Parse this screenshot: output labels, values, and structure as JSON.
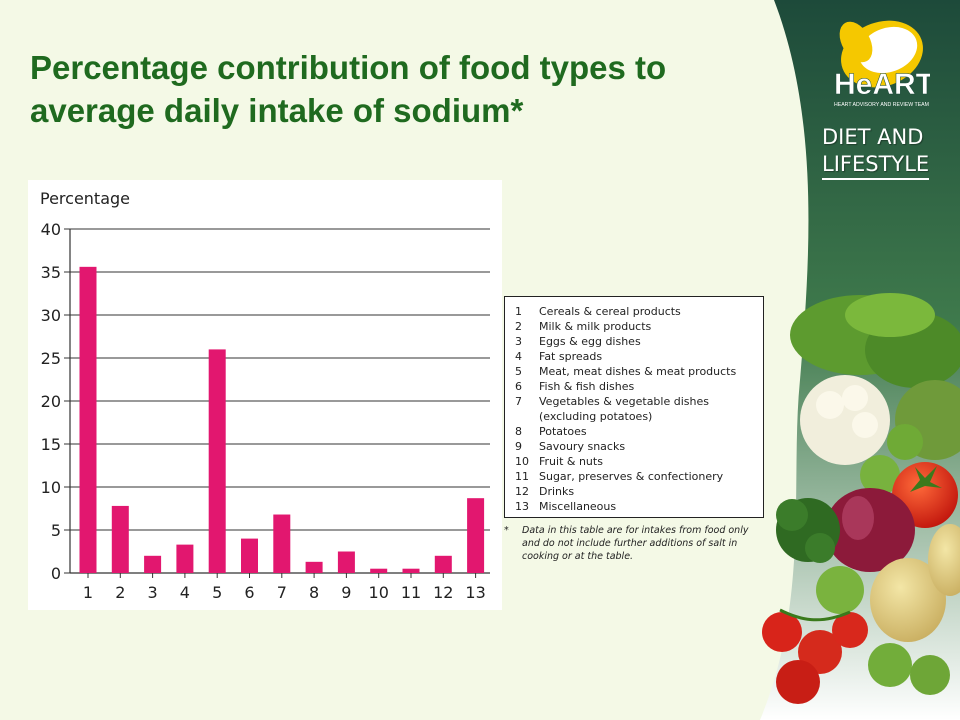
{
  "slide": {
    "title": "Percentage contribution of food types to average daily intake of sodium*"
  },
  "brand": {
    "logo_icon": "heart-logo-icon",
    "logo_text": "HeART",
    "logo_subtext": "HEART ADVISORY AND REVIEW TEAM",
    "line1": "DIET AND",
    "line2": "LIFESTYLE",
    "colors": {
      "panel_dark": "#1d4a3a",
      "panel_mid": "#3f7a4c",
      "logo_yellow": "#f5c800"
    }
  },
  "chart_data": {
    "type": "bar",
    "ylabel": "Percentage",
    "xlabel": "",
    "ylim": [
      0,
      40
    ],
    "yticks": [
      0,
      5,
      10,
      15,
      20,
      25,
      30,
      35,
      40
    ],
    "grid": true,
    "categories": [
      "1",
      "2",
      "3",
      "4",
      "5",
      "6",
      "7",
      "8",
      "9",
      "10",
      "11",
      "12",
      "13"
    ],
    "values": [
      35.6,
      7.8,
      2.0,
      3.3,
      26.0,
      4.0,
      6.8,
      1.3,
      2.5,
      0.5,
      0.5,
      2.0,
      8.7
    ],
    "bar_color": "#e2176f",
    "legend": [
      {
        "num": "1",
        "text": "Cereals & cereal products"
      },
      {
        "num": "2",
        "text": "Milk & milk products"
      },
      {
        "num": "3",
        "text": "Eggs & egg dishes"
      },
      {
        "num": "4",
        "text": "Fat spreads"
      },
      {
        "num": "5",
        "text": "Meat, meat dishes & meat products"
      },
      {
        "num": "6",
        "text": "Fish & fish dishes"
      },
      {
        "num": "7",
        "text": "Vegetables & vegetable dishes (excluding potatoes)"
      },
      {
        "num": "8",
        "text": "Potatoes"
      },
      {
        "num": "9",
        "text": "Savoury snacks"
      },
      {
        "num": "10",
        "text": "Fruit & nuts"
      },
      {
        "num": "11",
        "text": "Sugar, preserves & confectionery"
      },
      {
        "num": "12",
        "text": "Drinks"
      },
      {
        "num": "13",
        "text": "Miscellaneous"
      }
    ],
    "footnote_mark": "*",
    "footnote": "Data in this table are for intakes from food only and do not include further additions of salt in cooking or at the table."
  }
}
